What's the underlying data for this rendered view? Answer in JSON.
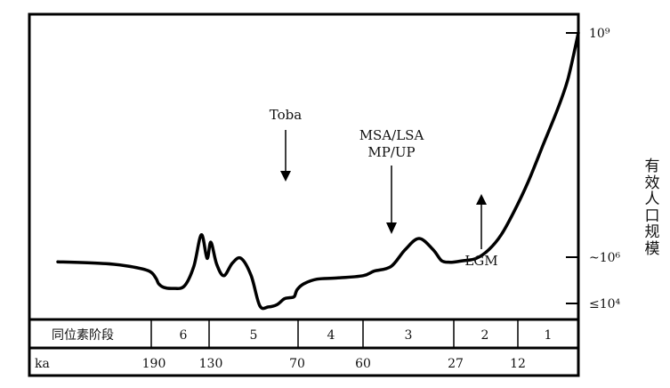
{
  "chart_data": {
    "type": "line",
    "title": "",
    "ylabel": "有效人口规模",
    "y_scale": "log",
    "y_ticks": [
      "10⁹",
      "~10⁶",
      "≤10⁴"
    ],
    "annotations": [
      "Toba",
      "MSA/LSA",
      "MP/UP",
      "LGM"
    ],
    "isotope_stage_label": "同位素阶段",
    "isotope_stages": [
      "6",
      "5",
      "4",
      "3",
      "2",
      "1"
    ],
    "ka_label": "ka",
    "ka_ticks": [
      "190",
      "130",
      "70",
      "60",
      "27",
      "12"
    ],
    "series": [
      {
        "x": [
          210,
          200,
          195,
          191,
          188,
          185,
          180,
          170,
          158,
          148,
          140,
          134,
          130,
          126,
          121,
          115,
          109,
          102,
          96,
          90,
          84,
          79,
          75,
          72,
          70,
          69,
          67,
          64,
          60,
          56,
          50,
          45,
          40,
          35,
          32,
          29,
          27,
          25,
          22,
          19,
          16,
          13,
          10,
          7,
          4,
          2,
          0
        ],
        "y": [
          5.8,
          5.72,
          5.6,
          5.4,
          5.1,
          4.85,
          4.7,
          4.65,
          4.75,
          5.6,
          6.3,
          5.95,
          6.2,
          5.7,
          5.2,
          5.75,
          5.95,
          5.2,
          3.9,
          3.85,
          3.95,
          4.2,
          4.25,
          4.3,
          4.6,
          4.85,
          5.05,
          5.1,
          5.2,
          5.4,
          5.6,
          6.1,
          6.25,
          6.1,
          5.85,
          5.78,
          5.8,
          5.85,
          5.95,
          6.1,
          6.3,
          6.6,
          7.0,
          7.5,
          8.0,
          8.4,
          9.0
        ]
      }
    ]
  }
}
